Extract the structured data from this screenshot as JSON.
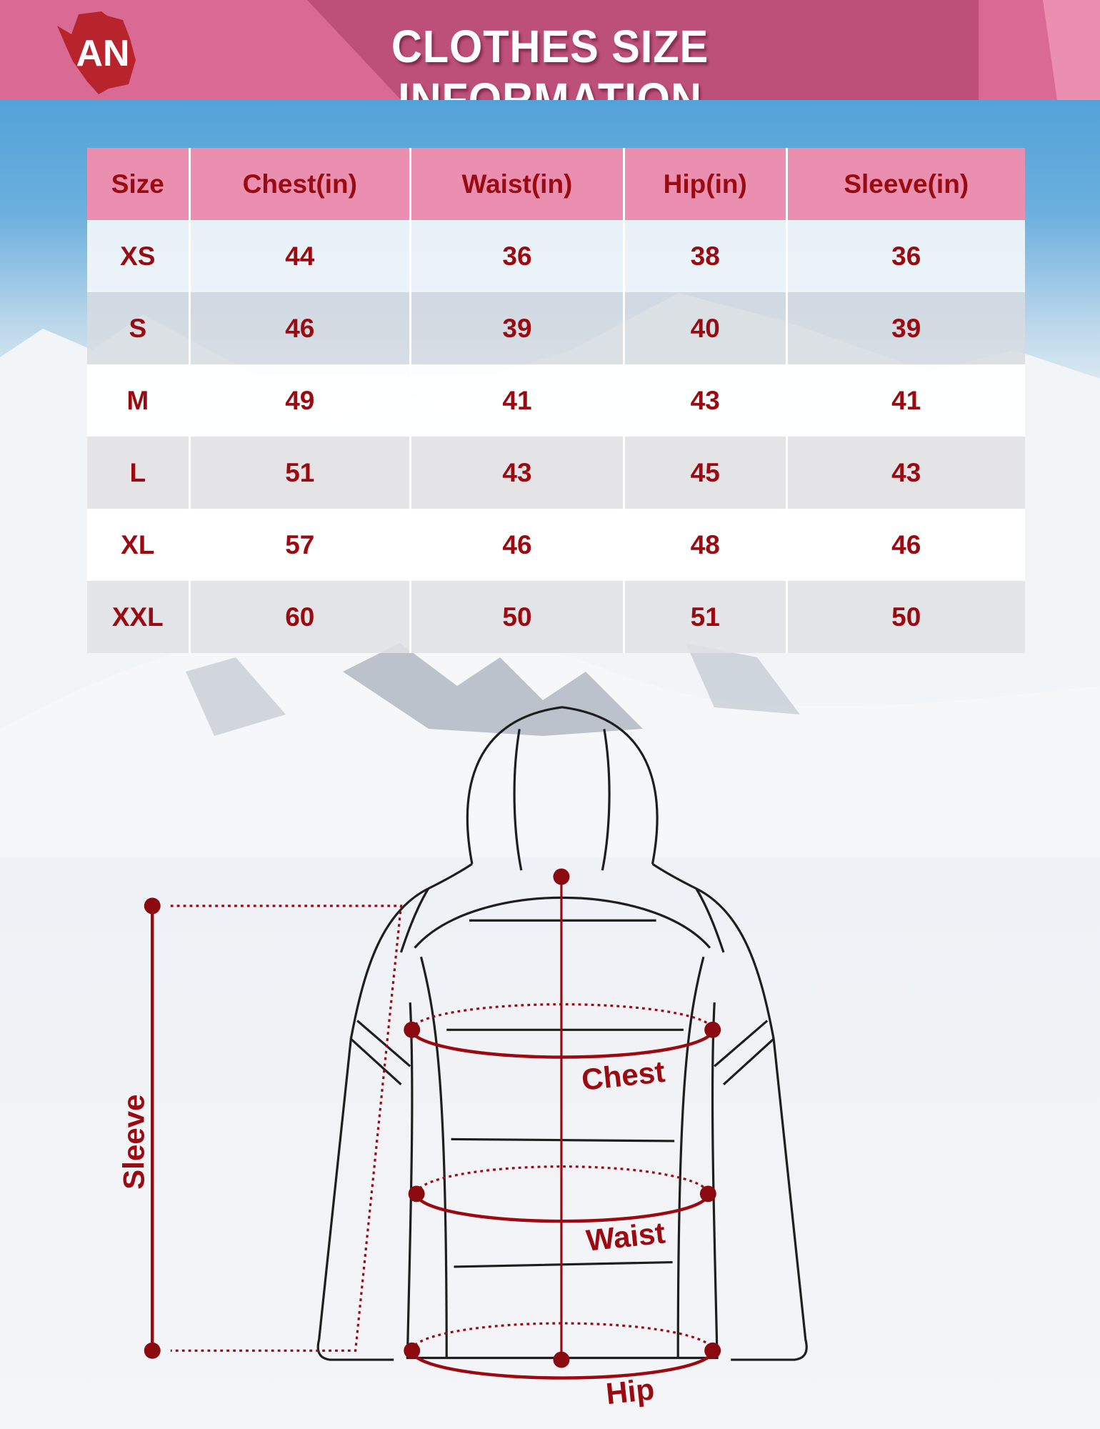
{
  "header": {
    "title": "CLOTHES SIZE INFORMATION",
    "logo_text": "AN"
  },
  "colors": {
    "header": "#d96a93",
    "header_band": "#bd5078",
    "table_header": "#ea8fb0",
    "text": "#9a0a10"
  },
  "table": {
    "columns": [
      "Size",
      "Chest(in)",
      "Waist(in)",
      "Hip(in)",
      "Sleeve(in)"
    ],
    "rows": [
      [
        "XS",
        "44",
        "36",
        "38",
        "36"
      ],
      [
        "S",
        "46",
        "39",
        "40",
        "39"
      ],
      [
        "M",
        "49",
        "41",
        "43",
        "41"
      ],
      [
        "L",
        "51",
        "43",
        "45",
        "43"
      ],
      [
        "XL",
        "57",
        "46",
        "48",
        "46"
      ],
      [
        "XXL",
        "60",
        "50",
        "51",
        "50"
      ]
    ]
  },
  "diagram": {
    "chest": "Chest",
    "waist": "Waist",
    "hip": "Hip",
    "sleeve": "Sleeve"
  }
}
